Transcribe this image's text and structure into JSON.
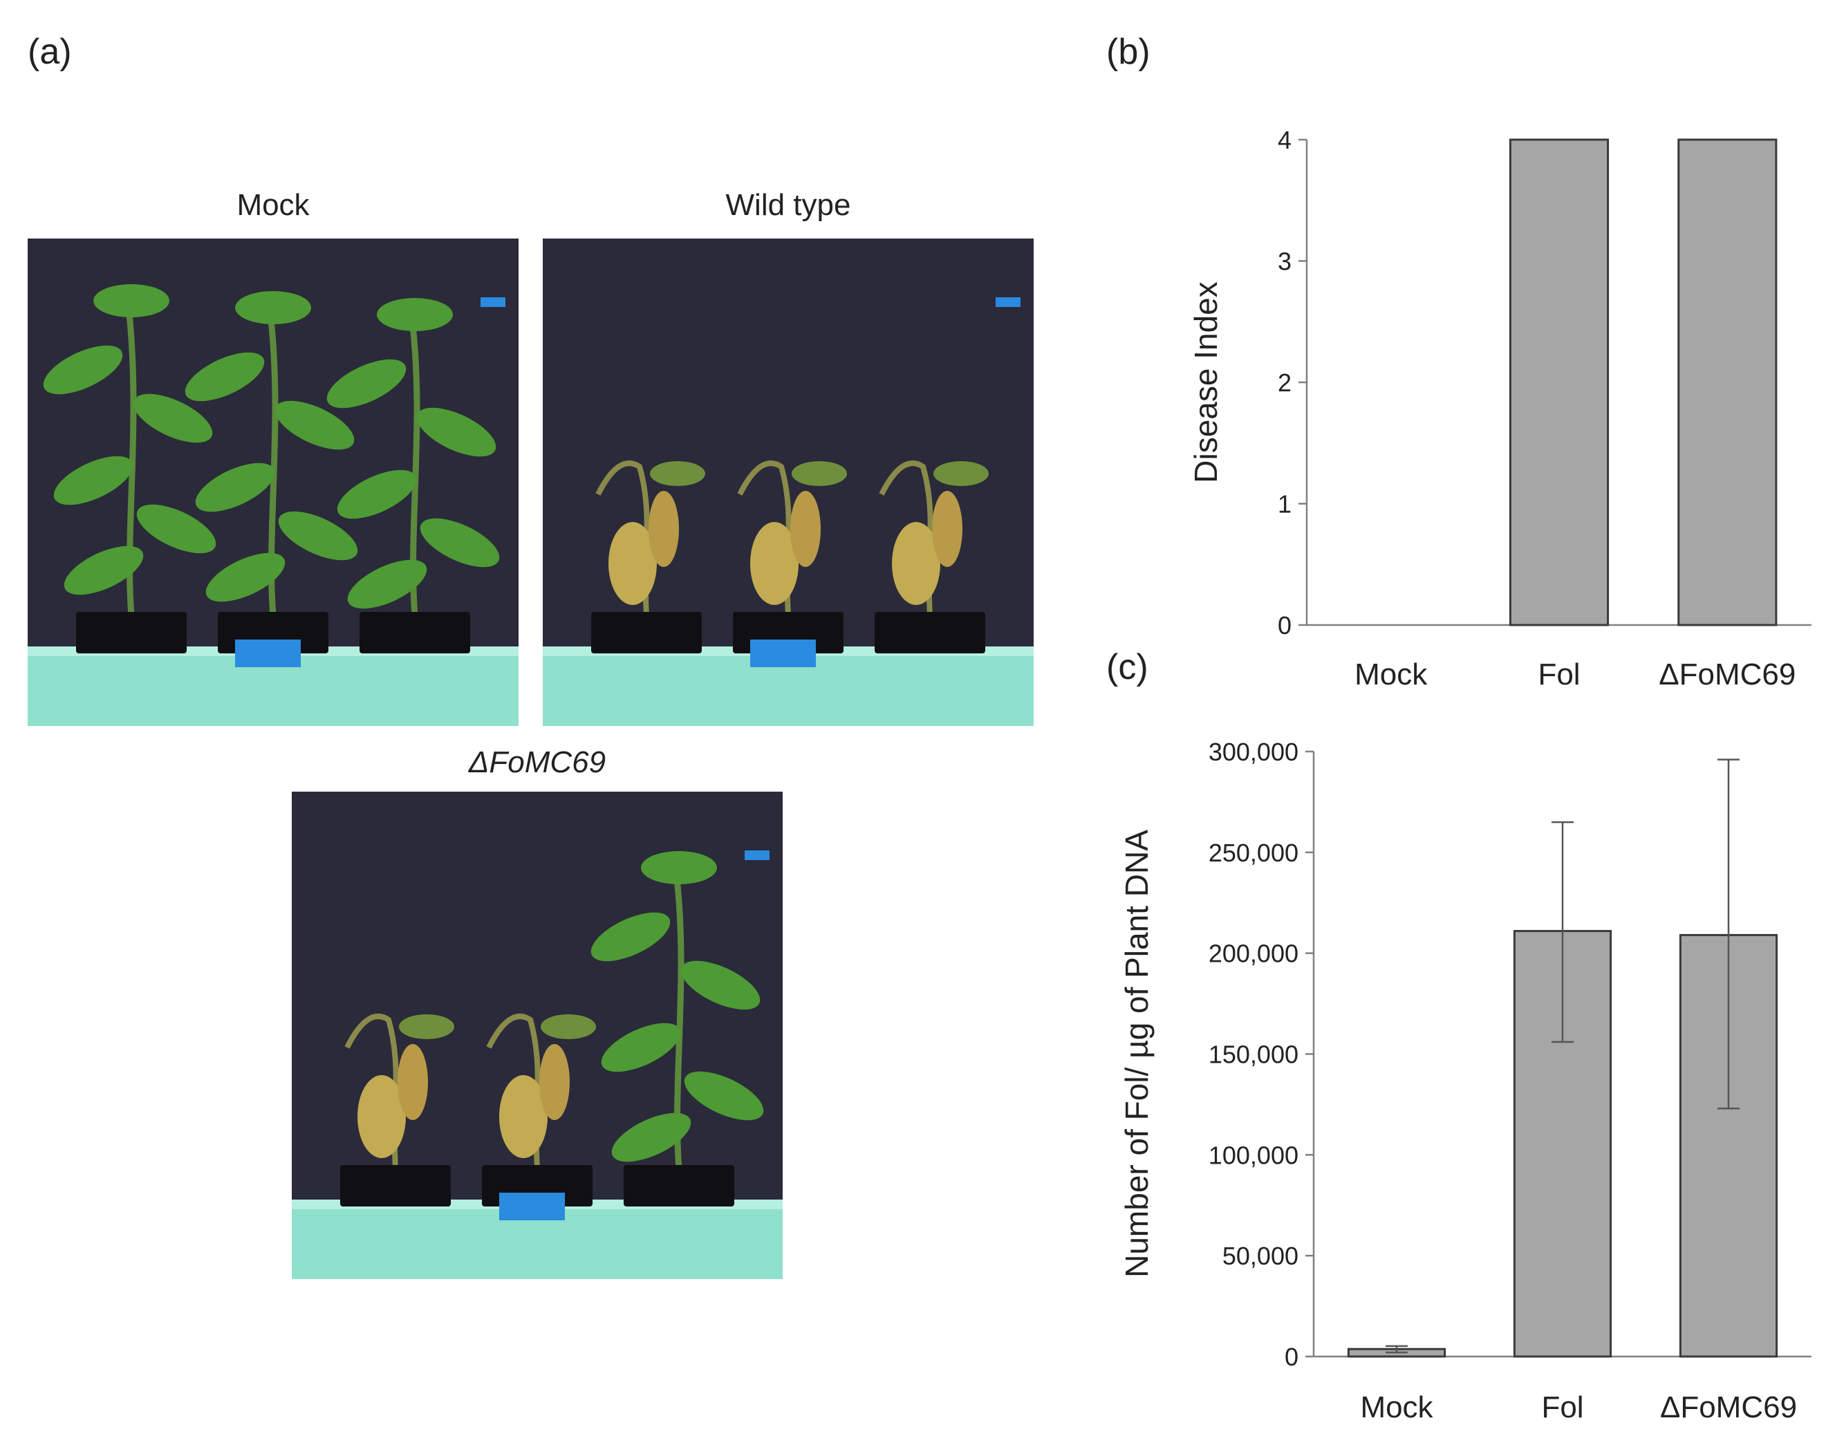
{
  "panel_a": {
    "letter": "(a)",
    "photos": [
      {
        "label": "Mock",
        "plants": [
          "healthy",
          "healthy",
          "healthy"
        ]
      },
      {
        "label": "Wild type",
        "plants": [
          "wilted",
          "wilted",
          "wilted"
        ]
      },
      {
        "label": "ΔFoMC69",
        "plants": [
          "wilted",
          "wilted",
          "healthy"
        ]
      }
    ]
  },
  "panel_b": {
    "letter": "(b)"
  },
  "panel_c": {
    "letter": "(c)"
  },
  "colors": {
    "bar_fill": "#a6a6a6",
    "bar_stroke": "#3a3a3a",
    "axis": "#808080",
    "backdrop": "#2a2a3a",
    "tray": "#8fe0cc",
    "tape": "#2a8be0",
    "leaf_healthy": "#4e9a34",
    "leaf_wilted": "#c2ab52"
  },
  "chart_data": [
    {
      "type": "bar",
      "panel": "(b)",
      "categories": [
        "Mock",
        "Fol",
        "ΔFoMC69"
      ],
      "values": [
        0,
        4,
        4
      ],
      "ylabel": "Disease Index",
      "xlabel": "",
      "ylim": [
        0,
        4
      ],
      "yticks": [
        "0",
        "1",
        "2",
        "3",
        "4"
      ],
      "grid": false
    },
    {
      "type": "bar",
      "panel": "(c)",
      "categories": [
        "Mock",
        "Fol",
        "ΔFoMC69"
      ],
      "values": [
        3700,
        211000,
        209000
      ],
      "error_low": [
        2000,
        156000,
        123000
      ],
      "error_high": [
        5200,
        265000,
        296000
      ],
      "ylabel": "Number of Fol/ µg of Plant DNA",
      "xlabel": "",
      "ylim": [
        0,
        300000
      ],
      "yticks": [
        "0",
        "50,000",
        "100,000",
        "150,000",
        "200,000",
        "250,000",
        "300,000"
      ],
      "grid": false
    }
  ]
}
